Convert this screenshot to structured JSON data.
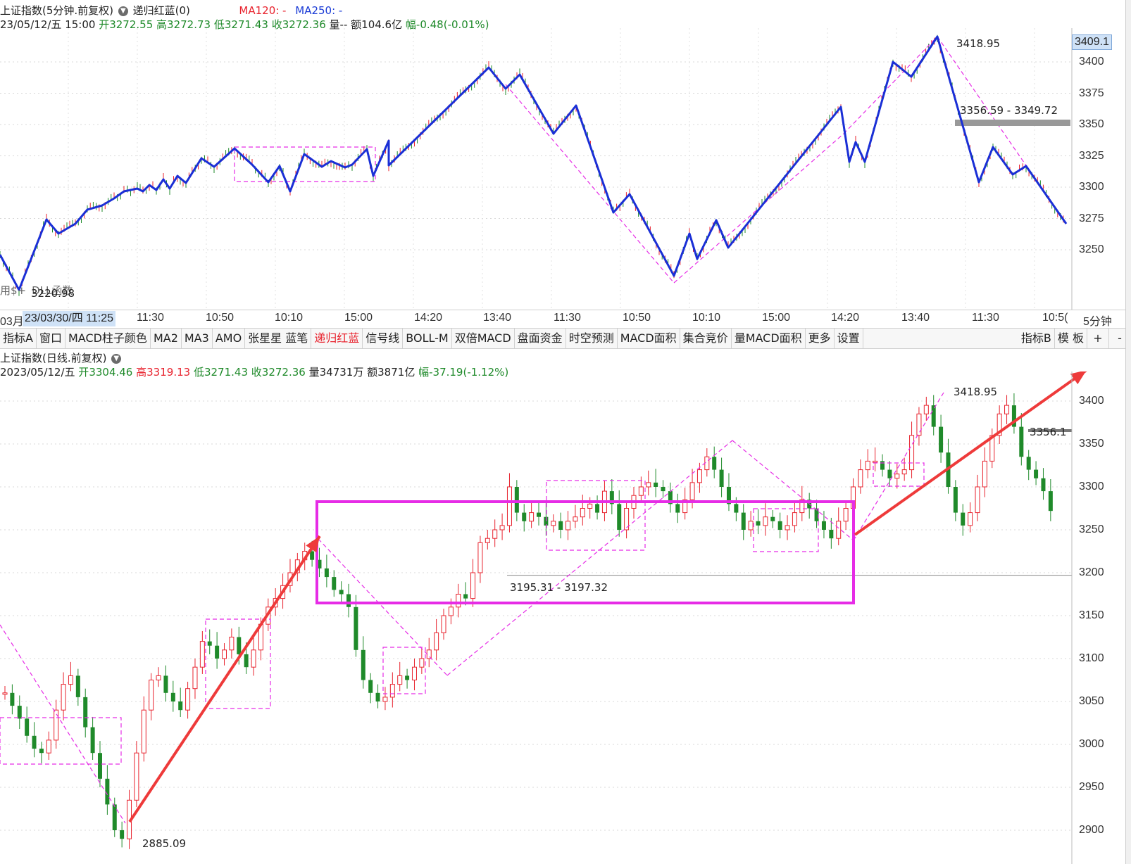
{
  "top_panel": {
    "title": "上证指数(5分钟.前复权)",
    "indicator_name": "递归红蓝(0)",
    "ma120_label": "MA120: -",
    "ma250_label": "MA250: -",
    "info": {
      "date": "23/05/12/五 15:00",
      "open_label": "开",
      "open": "3272.55",
      "high_label": "高",
      "high": "3272.73",
      "low_label": "低",
      "low": "3271.43",
      "close_label": "收",
      "close": "3272.36",
      "vol_label": "量",
      "vol": "--",
      "amount_label": "额",
      "amount": "104.6亿",
      "change_label": "幅",
      "change": "-0.48(-0.01%)"
    },
    "price_tag": "3409.1",
    "y_ticks": [
      "3400",
      "3375",
      "3350",
      "3325",
      "3300",
      "3275",
      "3250"
    ],
    "annotations": {
      "high": "3418.95",
      "low": "3220.98",
      "range": "3356.59 - 3349.72",
      "watermark": "用$+",
      "watermark2": "DLL函数"
    },
    "time_axis": {
      "left_stub": "03月",
      "crosshair": "23/03/30/四 11:25",
      "labels": [
        "11:30",
        "10:50",
        "10:10",
        "15:00",
        "14:20",
        "13:40",
        "11:30",
        "10:50",
        "10:10",
        "15:00",
        "14:20",
        "13:40",
        "11:30",
        "10:5("
      ],
      "period": "5分钟"
    }
  },
  "toolbar": {
    "items": [
      "指标A",
      "窗口",
      "MACD柱子颜色",
      "MA2",
      "MA3",
      "AMO",
      "张星星 蓝笔",
      "递归红蓝",
      "信号线",
      "BOLL-M",
      "双倍MACD",
      "盘面资金",
      "时空预测",
      "MACD面积",
      "集合竞价",
      "量MACD面积",
      "更多",
      "设置"
    ],
    "active": "递归红蓝",
    "right_items": [
      "指标B",
      "模 板",
      "+",
      "-"
    ]
  },
  "bottom_panel": {
    "title": "上证指数(日线.前复权)",
    "info": {
      "date": "2023/05/12/五",
      "open_label": "开",
      "open": "3304.46",
      "high_label": "高",
      "high": "3319.13",
      "low_label": "低",
      "low": "3271.43",
      "close_label": "收",
      "close": "3272.36",
      "vol_label": "量",
      "vol": "34731万",
      "amount_label": "额",
      "amount": "3871亿",
      "change_label": "幅",
      "change": "-37.19(-1.12%)"
    },
    "y_ticks": [
      "3400",
      "3350",
      "3300",
      "3250",
      "3200",
      "3150",
      "3100",
      "3050",
      "3000",
      "2950",
      "2900"
    ],
    "annotations": {
      "high": "3418.95",
      "low": "2885.09",
      "mid": "3195.31 - 3197.32",
      "right": "3356.1"
    }
  },
  "colors": {
    "up": "#e8232e",
    "down": "#1f8a2a",
    "stroke_blue": "#1a2fd6",
    "magenta": "#e62ce6",
    "arrow_red": "#ee3a3a"
  }
}
